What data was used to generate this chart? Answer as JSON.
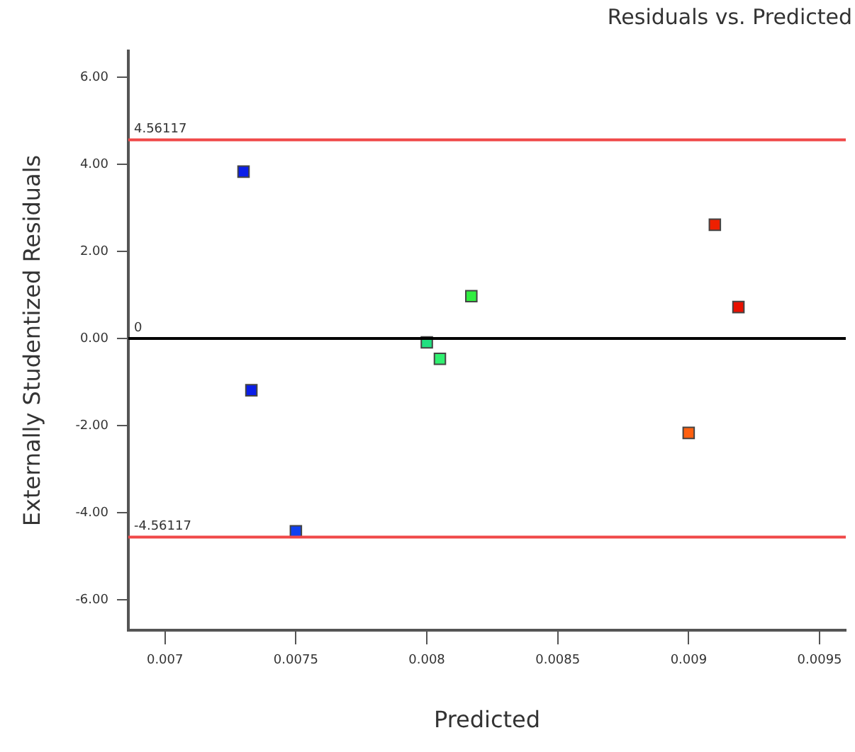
{
  "chart_data": {
    "type": "scatter",
    "title": "Residuals vs. Predicted",
    "xlabel": "Predicted",
    "ylabel": "Externally Studentized Residuals",
    "series": [
      {
        "x": [
          0.0073,
          0.00733,
          0.0075,
          0.008,
          0.00805,
          0.00817,
          0.0091,
          0.00919,
          0.009
        ],
        "values": [
          3.83,
          -1.19,
          -4.43,
          -0.09,
          -0.47,
          0.97,
          2.61,
          0.72,
          -2.17
        ],
        "colors": [
          "#0a1ee8",
          "#0a1ee8",
          "#1040f0",
          "#20e080",
          "#30f070",
          "#30ee40",
          "#ee2000",
          "#e81000",
          "#ff6010"
        ]
      }
    ],
    "xlim": [
      0.00686,
      0.0096
    ],
    "xticks": [
      0.007,
      0.0075,
      0.008,
      0.0085,
      0.009,
      0.0095
    ],
    "ylim": [
      -6.7,
      6.6
    ],
    "yticks": [
      {
        "value": -6,
        "label": "-6.00"
      },
      {
        "value": -4,
        "label": "-4.00"
      },
      {
        "value": -2,
        "label": "-2.00"
      },
      {
        "value": 0,
        "label": "0.00"
      },
      {
        "value": 2,
        "label": "2.00"
      },
      {
        "value": 4,
        "label": "4.00"
      },
      {
        "value": 6,
        "label": "6.00"
      }
    ],
    "ref_lines": [
      {
        "axis": "y",
        "value": 4.56117,
        "label": "4.56117",
        "color": "#f04848"
      },
      {
        "axis": "y",
        "value": 0,
        "label": "0",
        "color": "#000000"
      },
      {
        "axis": "y",
        "value": -4.56117,
        "label": "-4.56117",
        "color": "#f04848"
      }
    ],
    "marker": "square",
    "grid": false,
    "legend": false
  }
}
